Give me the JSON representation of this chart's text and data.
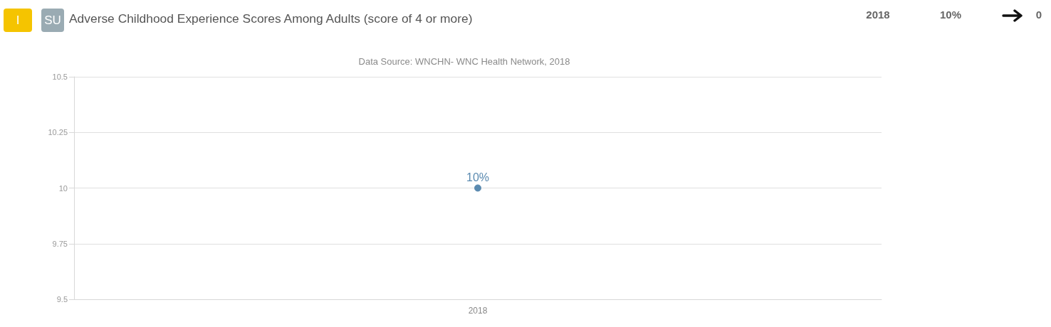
{
  "chart_data": {
    "type": "line",
    "title": "Adverse Childhood Experience Scores Among Adults (score of 4 or more)",
    "subtitle": "Data Source: WNCHN- WNC Health Network, 2018",
    "annotations": [
      "I",
      "SU",
      "2018",
      "10%",
      "0"
    ],
    "categories": [
      "2018"
    ],
    "series": [
      {
        "color": "#5a8ab0",
        "values": [
          10
        ],
        "value_labels": [
          "10%"
        ]
      }
    ],
    "ylim": [
      9.5,
      10.5
    ],
    "yticks": [
      9.5,
      9.75,
      10,
      10.25,
      10.5
    ],
    "grid": "y",
    "marker": "circle"
  }
}
